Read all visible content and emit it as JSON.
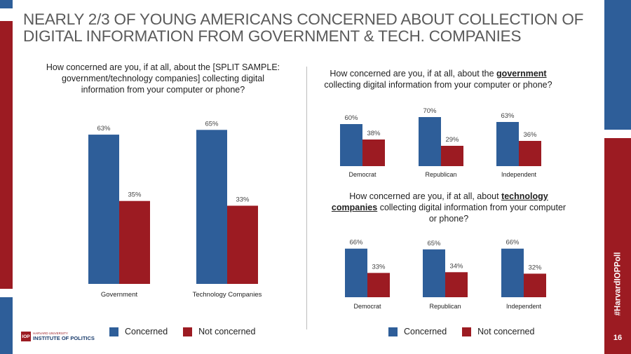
{
  "title": "NEARLY 2/3 OF YOUNG AMERICANS CONCERNED ABOUT COLLECTION OF DIGITAL INFORMATION FROM GOVERNMENT & TECH. COMPANIES",
  "colors": {
    "concerned": "#2e5e99",
    "not_concerned": "#9c1b22"
  },
  "left": {
    "question": "How concerned are you, if at all, about the [SPLIT SAMPLE: government/technology companies] collecting digital information from your computer or phone?"
  },
  "right_top": {
    "q_prefix": "How concerned are you, if at all, about the ",
    "q_emph": "government",
    "q_suffix": " collecting digital information from your computer or phone?"
  },
  "right_bottom": {
    "q_prefix": "How concerned are you, if at all, about ",
    "q_emph": "technology companies",
    "q_suffix": " collecting digital information from your computer or phone?"
  },
  "legend": {
    "concerned": "Concerned",
    "not_concerned": "Not concerned"
  },
  "chart_data": [
    {
      "type": "bar",
      "categories": [
        "Government",
        "Technology Companies"
      ],
      "series": [
        {
          "name": "Concerned",
          "values": [
            63,
            65
          ]
        },
        {
          "name": "Not concerned",
          "values": [
            35,
            33
          ]
        }
      ],
      "ylim": [
        0,
        100
      ],
      "value_suffix": "%"
    },
    {
      "type": "bar",
      "categories": [
        "Democrat",
        "Republican",
        "Independent"
      ],
      "series": [
        {
          "name": "Concerned",
          "values": [
            60,
            70,
            63
          ]
        },
        {
          "name": "Not concerned",
          "values": [
            38,
            29,
            36
          ]
        }
      ],
      "ylim": [
        0,
        100
      ],
      "value_suffix": "%"
    },
    {
      "type": "bar",
      "categories": [
        "Democrat",
        "Republican",
        "Independent"
      ],
      "series": [
        {
          "name": "Concerned",
          "values": [
            66,
            65,
            66
          ]
        },
        {
          "name": "Not concerned",
          "values": [
            33,
            34,
            32
          ]
        }
      ],
      "ylim": [
        0,
        100
      ],
      "value_suffix": "%"
    }
  ],
  "branding": {
    "logo_mark": "IOP",
    "logo_small": "HARVARD UNIVERSITY",
    "logo_name": "INSTITUTE OF POLITICS",
    "hashtag": "#HarvardIOPPoll",
    "page_number": "16"
  }
}
